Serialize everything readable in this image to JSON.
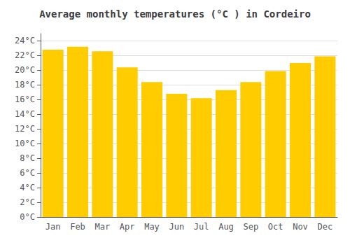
{
  "chart_data": {
    "type": "bar",
    "title": "Average monthly temperatures (°C ) in Cordeiro",
    "categories": [
      "Jan",
      "Feb",
      "Mar",
      "Apr",
      "May",
      "Jun",
      "Jul",
      "Aug",
      "Sep",
      "Oct",
      "Nov",
      "Dec"
    ],
    "values": [
      22.8,
      23.2,
      22.6,
      20.4,
      18.4,
      16.8,
      16.2,
      17.3,
      18.4,
      19.9,
      21.0,
      21.9
    ],
    "color": "#FFCC00",
    "ylim": [
      0,
      25
    ],
    "yticks": [
      {
        "value": 0,
        "label": "0°C"
      },
      {
        "value": 2,
        "label": "2°C"
      },
      {
        "value": 4,
        "label": "4°C"
      },
      {
        "value": 6,
        "label": "6°C"
      },
      {
        "value": 8,
        "label": "8°C"
      },
      {
        "value": 10,
        "label": "10°C"
      },
      {
        "value": 12,
        "label": "12°C"
      },
      {
        "value": 14,
        "label": "14°C"
      },
      {
        "value": 16,
        "label": "16°C"
      },
      {
        "value": 18,
        "label": "18°C"
      },
      {
        "value": 20,
        "label": "20°C"
      },
      {
        "value": 22,
        "label": "22°C"
      },
      {
        "value": 24,
        "label": "24°C"
      }
    ],
    "grid": true
  }
}
